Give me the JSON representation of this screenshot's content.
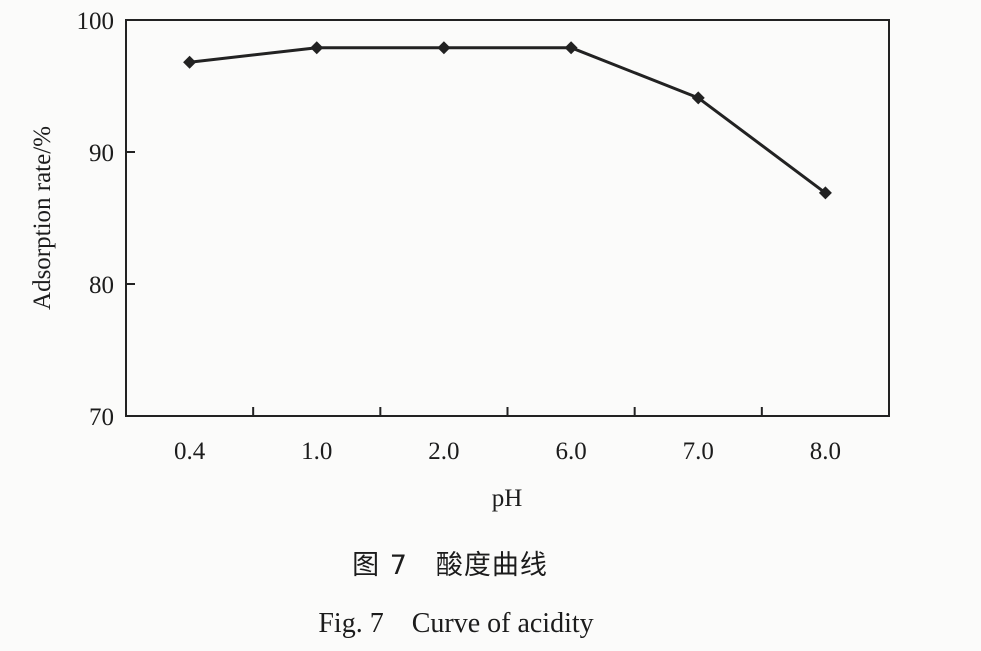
{
  "caption": {
    "zh": "图 7　酸度曲线",
    "en": "Fig. 7　Curve of acidity"
  },
  "chart_data": {
    "type": "line",
    "categories": [
      "0.4",
      "1.0",
      "2.0",
      "6.0",
      "7.0",
      "8.0"
    ],
    "series": [
      {
        "values": [
          96.8,
          97.9,
          97.9,
          97.9,
          94.1,
          86.9
        ]
      }
    ],
    "xlabel": "pH",
    "ylabel": "Adsorption rate/%",
    "ylim": [
      70,
      100
    ],
    "yticks": [
      70,
      80,
      90,
      100
    ],
    "grid": false,
    "marker": "diamond",
    "line_color": "#222222"
  }
}
